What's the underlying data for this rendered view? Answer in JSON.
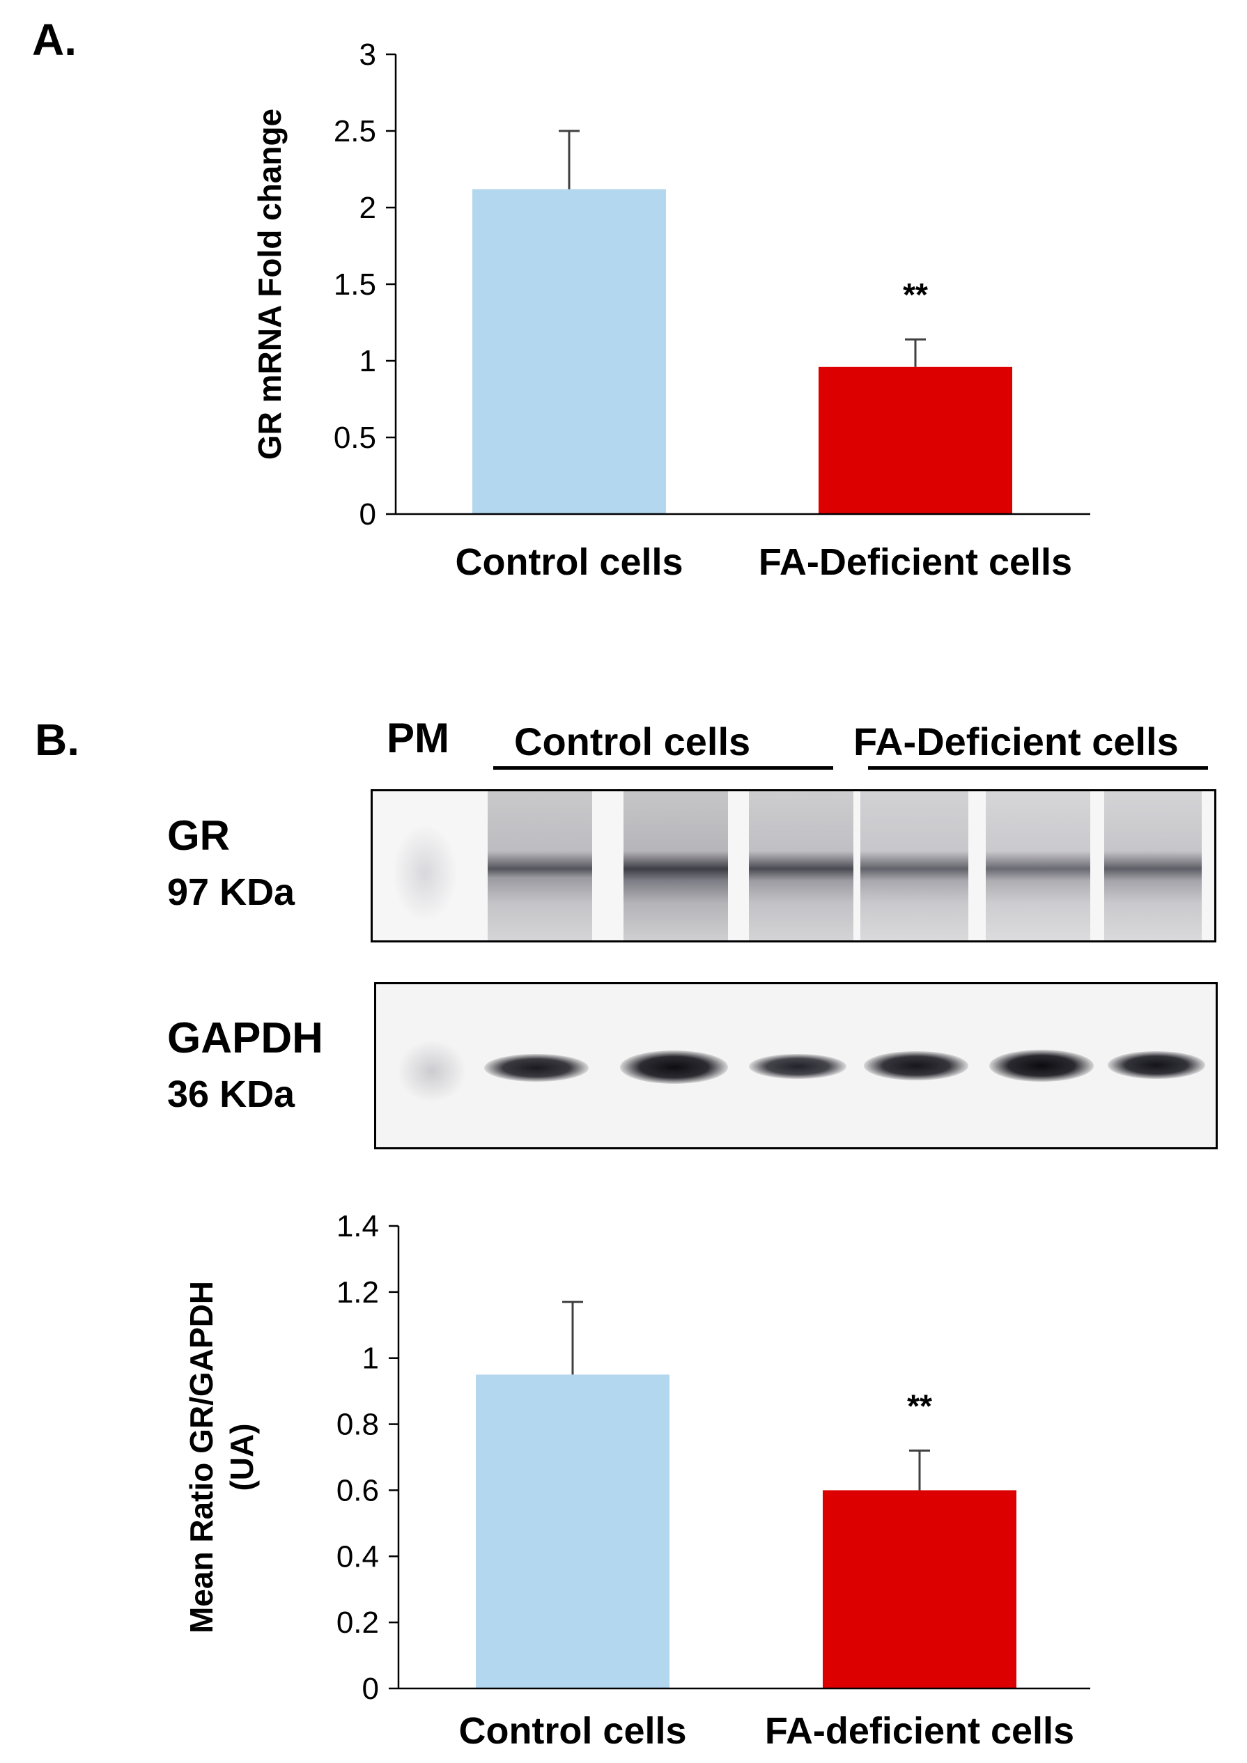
{
  "panel_a_letter": "A.",
  "panel_b_letter": "B.",
  "blot": {
    "marker_label": "PM",
    "group1_label": "Control cells",
    "group2_label": "FA-Deficient cells",
    "gr_name": "GR",
    "gr_weight": "97 KDa",
    "gapdh_name": "GAPDH",
    "gapdh_weight": "36 KDa"
  },
  "colors": {
    "control": "#b3d7ee",
    "deficient": "#dd0000",
    "axis": "#000000",
    "error_bar": "#404040"
  },
  "chart_data": [
    {
      "type": "bar",
      "categories": [
        "Control cells",
        "FA-Deficient cells"
      ],
      "values": [
        2.12,
        0.96
      ],
      "error_upper": [
        0.38,
        0.18
      ],
      "significance": [
        "",
        "**"
      ],
      "ylabel": "GR mRNA Fold change",
      "ylim": [
        0,
        3
      ],
      "yticks": [
        "0",
        "0.5",
        "1",
        "1.5",
        "2",
        "2.5",
        "3"
      ],
      "ytick_values": [
        0,
        0.5,
        1,
        1.5,
        2,
        2.5,
        3
      ]
    },
    {
      "type": "bar",
      "categories": [
        "Control cells",
        "FA-deficient cells"
      ],
      "values": [
        0.95,
        0.6
      ],
      "error_upper": [
        0.22,
        0.12
      ],
      "significance": [
        "",
        "**"
      ],
      "ylabel": [
        "Mean Ratio GR/GAPDH",
        "(UA)"
      ],
      "ylim": [
        0,
        1.4
      ],
      "yticks": [
        "0",
        "0.2",
        "0.4",
        "0.6",
        "0.8",
        "1",
        "1.2",
        "1.4"
      ],
      "ytick_values": [
        0,
        0.2,
        0.4,
        0.6,
        0.8,
        1,
        1.2,
        1.4
      ]
    }
  ]
}
